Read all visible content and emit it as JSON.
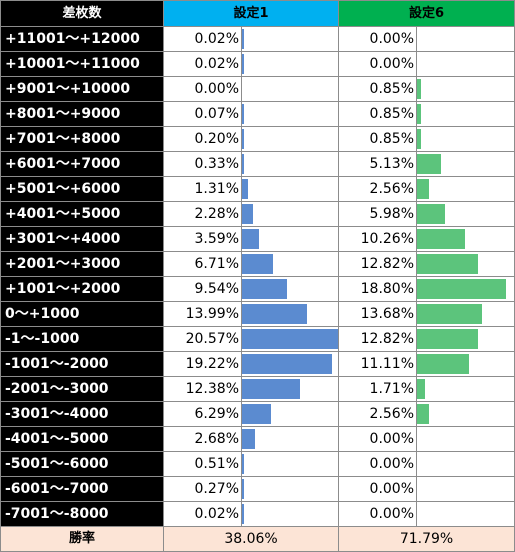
{
  "headers": {
    "label": "差枚数",
    "setting1": "設定1",
    "setting6": "設定6"
  },
  "chart_data": {
    "type": "table",
    "categories": [
      "+11001～+12000",
      "+10001～+11000",
      "+9001～+10000",
      "+8001～+9000",
      "+7001～+8000",
      "+6001～+7000",
      "+5001～+6000",
      "+4001～+5000",
      "+3001～+4000",
      "+2001～+3000",
      "+1001～+2000",
      "0～+1000",
      "-1～-1000",
      "-1001～-2000",
      "-2001～-3000",
      "-3001～-4000",
      "-4001～-5000",
      "-5001～-6000",
      "-6001～-7000",
      "-7001～-8000"
    ],
    "series": [
      {
        "name": "設定1",
        "color": "#5b8bd0",
        "values": [
          0.02,
          0.02,
          0.0,
          0.07,
          0.2,
          0.33,
          1.31,
          2.28,
          3.59,
          6.71,
          9.54,
          13.99,
          20.57,
          19.22,
          12.38,
          6.29,
          2.68,
          0.51,
          0.27,
          0.02
        ]
      },
      {
        "name": "設定6",
        "color": "#5cc47c",
        "values": [
          0.0,
          0.0,
          0.85,
          0.85,
          0.85,
          5.13,
          2.56,
          5.98,
          10.26,
          12.82,
          18.8,
          13.68,
          12.82,
          11.11,
          1.71,
          2.56,
          0.0,
          0.0,
          0.0,
          0.0
        ]
      }
    ],
    "unit": "%",
    "total": {
      "label": "勝率",
      "setting1": "38.06%",
      "setting6": "71.79%"
    }
  }
}
